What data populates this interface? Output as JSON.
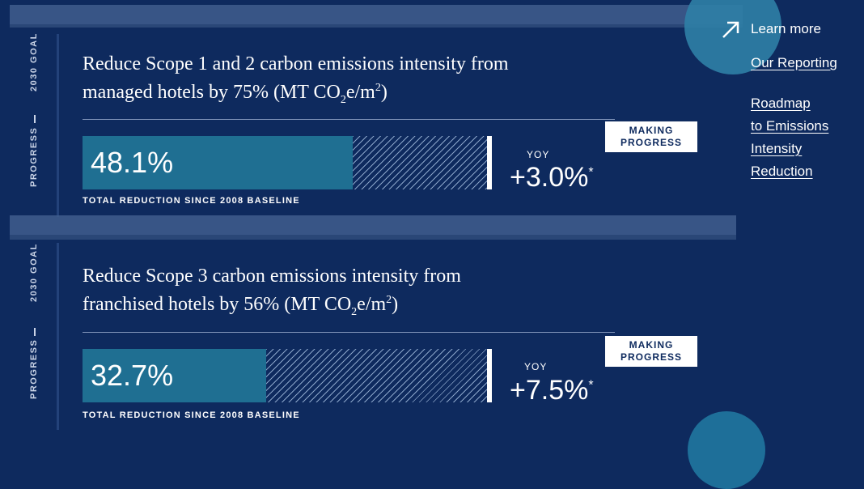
{
  "goals": [
    {
      "goal_label": "2030 GOAL",
      "progress_label": "PROGRESS",
      "text_pre": "Reduce Scope 1 and 2 carbon emissions intensity from",
      "text_line2_pre": "managed hotels by 75% (MT CO",
      "sub": "2",
      "mid": "e/m",
      "sup": "2",
      "text_post": ")",
      "reduction_value": "48.1%",
      "reduction_fraction": 0.481,
      "caption": "TOTAL REDUCTION SINCE 2008 BASELINE",
      "badge_line1": "MAKING",
      "badge_line2": "PROGRESS",
      "yoy_label": "YOY",
      "yoy_value": "+3.0%",
      "yoy_mark": "*"
    },
    {
      "goal_label": "2030 GOAL",
      "progress_label": "PROGRESS",
      "text_pre": "Reduce Scope 3 carbon emissions intensity from",
      "text_line2_pre": "franchised hotels by 56% (MT CO",
      "sub": "2",
      "mid": "e/m",
      "sup": "2",
      "text_post": ")",
      "reduction_value": "32.7%",
      "reduction_fraction": 0.327,
      "caption": "TOTAL REDUCTION SINCE 2008 BASELINE",
      "badge_line1": "MAKING",
      "badge_line2": "PROGRESS",
      "yoy_label": "YOY",
      "yoy_value": "+7.5%",
      "yoy_mark": "*"
    }
  ],
  "sidebar": {
    "learn_more": "Learn more",
    "icon": "arrow-up-right-icon",
    "links": [
      "Our Reporting",
      "Roadmap",
      "to Emissions",
      "Intensity",
      "Reduction"
    ]
  },
  "colors": {
    "background": "#0e2a5e",
    "bar_fill": "#1f6f92",
    "accent_circle": "#2f7fa6"
  }
}
